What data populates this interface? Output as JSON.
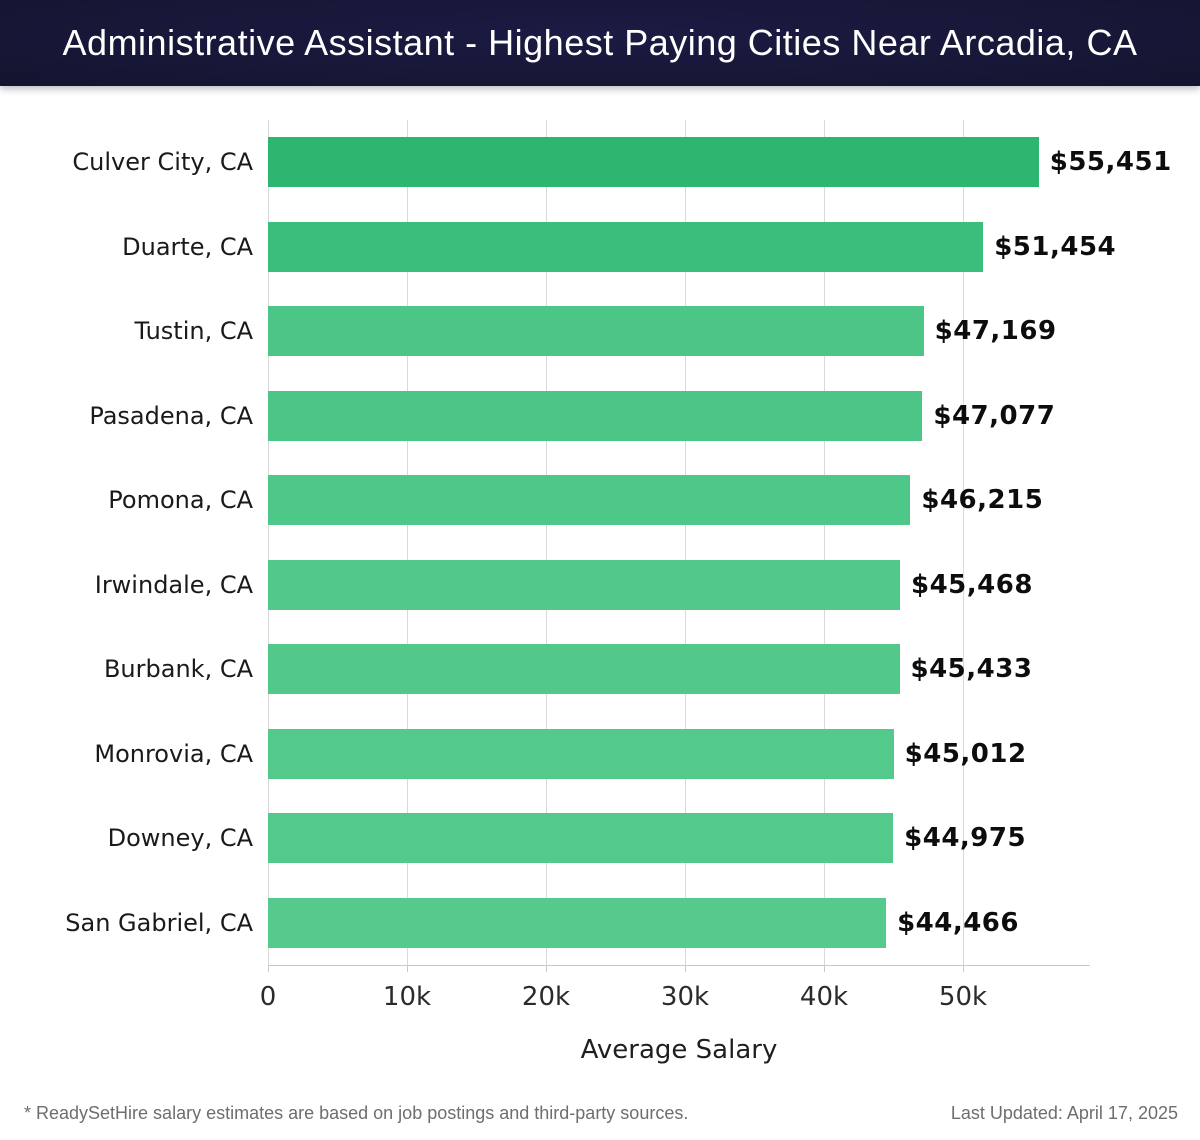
{
  "header": {
    "title": "Administrative Assistant - Highest Paying Cities Near Arcadia, CA",
    "bg_color": "#161638",
    "text_color": "#ffffff"
  },
  "chart_data": {
    "type": "bar",
    "orientation": "horizontal",
    "title": "Administrative Assistant - Highest Paying Cities Near Arcadia, CA",
    "xlabel": "Average Salary",
    "xlim": [
      0,
      59137
    ],
    "grid": true,
    "grid_color": "#d9d9d9",
    "axis_color": "#c8c8c8",
    "categories": [
      "Culver City, CA",
      "Duarte, CA",
      "Tustin, CA",
      "Pasadena, CA",
      "Pomona, CA",
      "Irwindale, CA",
      "Burbank, CA",
      "Monrovia, CA",
      "Downey, CA",
      "San Gabriel, CA"
    ],
    "values": [
      55451,
      51454,
      47169,
      47077,
      46215,
      45468,
      45433,
      45012,
      44975,
      44466
    ],
    "value_labels": [
      "$55,451",
      "$51,454",
      "$47,169",
      "$47,077",
      "$46,215",
      "$45,468",
      "$45,433",
      "$45,012",
      "$44,975",
      "$44,466"
    ],
    "bar_colors": [
      "#2cb670",
      "#3bbd7b",
      "#4cc586",
      "#4cc586",
      "#4fc788",
      "#52c88a",
      "#52c88a",
      "#54c98c",
      "#54c98c",
      "#56ca8d"
    ],
    "xticks": {
      "values": [
        0,
        10000,
        20000,
        30000,
        40000,
        50000
      ],
      "labels": [
        "0",
        "10k",
        "20k",
        "30k",
        "40k",
        "50k"
      ]
    }
  },
  "footer": {
    "disclaimer": "* ReadySetHire salary estimates are based on job postings and third-party sources.",
    "last_updated": "Last Updated: April 17, 2025"
  }
}
